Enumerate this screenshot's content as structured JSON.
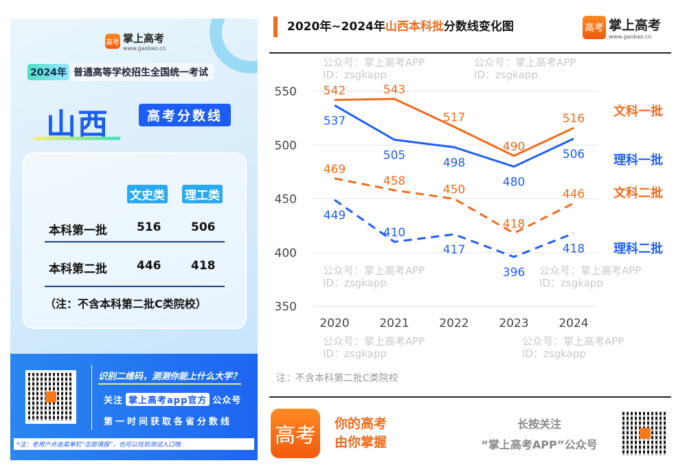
{
  "left_panel": {
    "brand": "掌上高考",
    "url": "www.gaokao.cn",
    "logo_text": "高考",
    "exam_year": "2024年",
    "exam_name": "普通高等学校招生全国统一考试",
    "province": "山西",
    "tag": "高考分数线",
    "table": {
      "columns": [
        "文史类",
        "理工类"
      ],
      "rows": [
        {
          "label": "本科第一批",
          "values": [
            "516",
            "506"
          ]
        },
        {
          "label": "本科第二批",
          "values": [
            "446",
            "418"
          ]
        }
      ],
      "note": "（注：不含本科第二批C类院校）"
    },
    "promo": {
      "headline": "识别二维码，测测你能上什么大学？",
      "follow_prefix": "关注",
      "follow_account": "掌上高考app官方",
      "follow_suffix": "公众号",
      "line3": "第一时间获取各省分数线",
      "footnote": "*注：老用户点击菜单栏“志愿填报”，也可以找到测试入口哦"
    }
  },
  "header": {
    "title_pre": "2020年~2024年",
    "title_highlight": "山西本科批",
    "title_post": "分数线变化图",
    "brand": "掌上高考",
    "url": "www.gaokao.cn"
  },
  "watermark": {
    "line1": "公众号：掌上高考APP",
    "line2": "ID：zsgkapp"
  },
  "colors": {
    "orange": "#f26a1b",
    "blue": "#1e5ef5"
  },
  "chart_data": {
    "type": "line",
    "x": [
      "2020",
      "2021",
      "2022",
      "2023",
      "2024"
    ],
    "ylim": [
      350,
      550
    ],
    "yticks": [
      "350",
      "400",
      "450",
      "500",
      "550"
    ],
    "grid": true,
    "series": [
      {
        "name": "文科一批",
        "values": [
          542,
          543,
          517,
          490,
          516
        ],
        "color": "#f26a1b",
        "dash": false
      },
      {
        "name": "理科一批",
        "values": [
          537,
          505,
          498,
          480,
          506
        ],
        "color": "#1e5ef5",
        "dash": false
      },
      {
        "name": "文科二批",
        "values": [
          469,
          458,
          450,
          418,
          446
        ],
        "color": "#f26a1b",
        "dash": true
      },
      {
        "name": "理科二批",
        "values": [
          449,
          410,
          417,
          396,
          418
        ],
        "color": "#1e5ef5",
        "dash": true
      }
    ],
    "note": "注：不含本科第二批C类院校"
  },
  "footer": {
    "slogan1": "你的高考",
    "slogan2": "由你掌握",
    "follow1": "长按关注",
    "follow2": "“掌上高考APP”公众号",
    "icon_text": "高考"
  }
}
